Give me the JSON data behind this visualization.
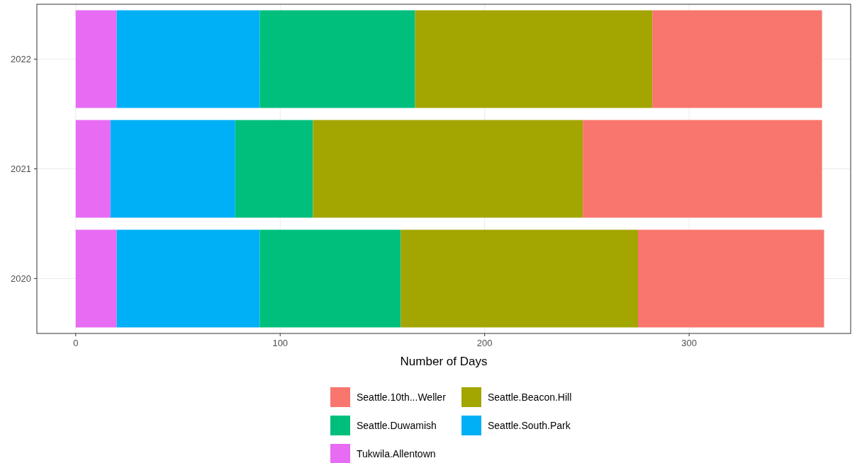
{
  "chart_data": {
    "type": "bar",
    "orientation": "horizontal",
    "stacked": true,
    "xlabel": "Number of Days",
    "categories": [
      "2022",
      "2021",
      "2020"
    ],
    "series": [
      {
        "name": "Tukwila.Allentown",
        "color": "#e76bf3",
        "values": [
          20,
          17,
          20
        ]
      },
      {
        "name": "Seattle.South.Park",
        "color": "#00b0f6",
        "values": [
          70,
          61,
          70
        ]
      },
      {
        "name": "Seattle.Duwamish",
        "color": "#00bf7d",
        "values": [
          76,
          38,
          69
        ]
      },
      {
        "name": "Seattle.Beacon.Hill",
        "color": "#a3a500",
        "values": [
          116,
          132,
          116
        ]
      },
      {
        "name": "Seattle.10th...Weller",
        "color": "#f8766d",
        "values": [
          83,
          117,
          91
        ]
      }
    ],
    "xlim": [
      -19,
      379
    ],
    "xticks": [
      0,
      100,
      200,
      300
    ],
    "grid": true,
    "legend": "bottom"
  }
}
